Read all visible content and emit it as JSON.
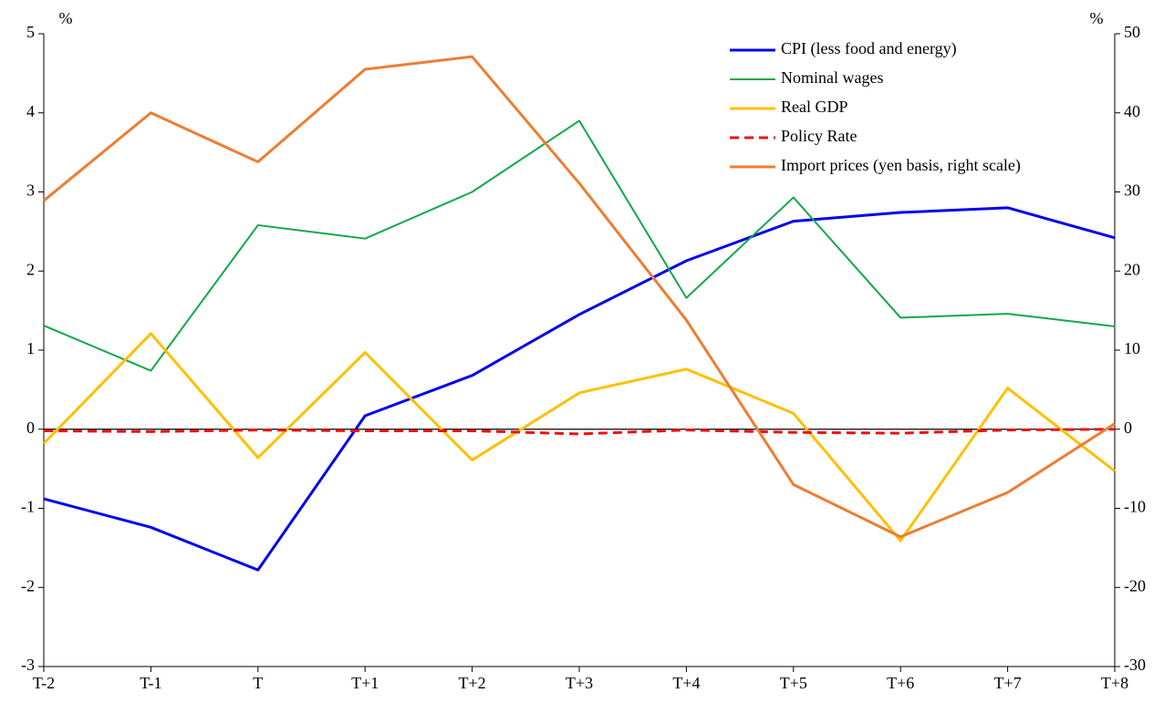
{
  "chart_data": {
    "type": "line",
    "ylabel": "%",
    "y2label": "%",
    "categories": [
      "T-2",
      "T-1",
      "T",
      "T+1",
      "T+2",
      "T+3",
      "T+4",
      "T+5",
      "T+6",
      "T+7",
      "T+8"
    ],
    "ylim": [
      -3,
      5
    ],
    "yticks": [
      -3,
      -2,
      -1,
      0,
      1,
      2,
      3,
      4,
      5
    ],
    "y2lim": [
      -30,
      50
    ],
    "y2ticks": [
      -30,
      -20,
      -10,
      0,
      10,
      20,
      30,
      40,
      50
    ],
    "legend": "top-right",
    "series": [
      {
        "name": "CPI (less food and energy)",
        "color": "#0000ee",
        "width": 3,
        "values": [
          -0.88,
          -1.24,
          -1.78,
          0.17,
          0.68,
          1.45,
          2.13,
          2.63,
          2.74,
          2.8,
          2.42
        ]
      },
      {
        "name": "Nominal wages",
        "color": "#12a84a",
        "width": 2,
        "values": [
          1.31,
          0.74,
          2.58,
          2.41,
          3.0,
          3.9,
          1.66,
          2.93,
          1.41,
          1.46,
          1.3
        ]
      },
      {
        "name": "Real GDP",
        "color": "#ffc000",
        "width": 3,
        "values": [
          -0.18,
          1.21,
          -0.36,
          0.97,
          -0.39,
          0.46,
          0.76,
          0.2,
          -1.41,
          0.52,
          -0.53
        ]
      },
      {
        "name": "Policy Rate",
        "color": "#ee1111",
        "width": 3,
        "dashed": true,
        "values": [
          -0.02,
          -0.03,
          -0.01,
          -0.02,
          -0.02,
          -0.06,
          -0.01,
          -0.04,
          -0.05,
          -0.01,
          0.0
        ]
      },
      {
        "name": "Import prices (yen basis, right scale)",
        "color": "#ed7d31",
        "width": 3,
        "axis": "y2",
        "values": [
          28.9,
          40.0,
          33.8,
          45.5,
          47.1,
          31.1,
          13.8,
          -7.0,
          -13.6,
          -8.0,
          0.7
        ]
      }
    ]
  }
}
